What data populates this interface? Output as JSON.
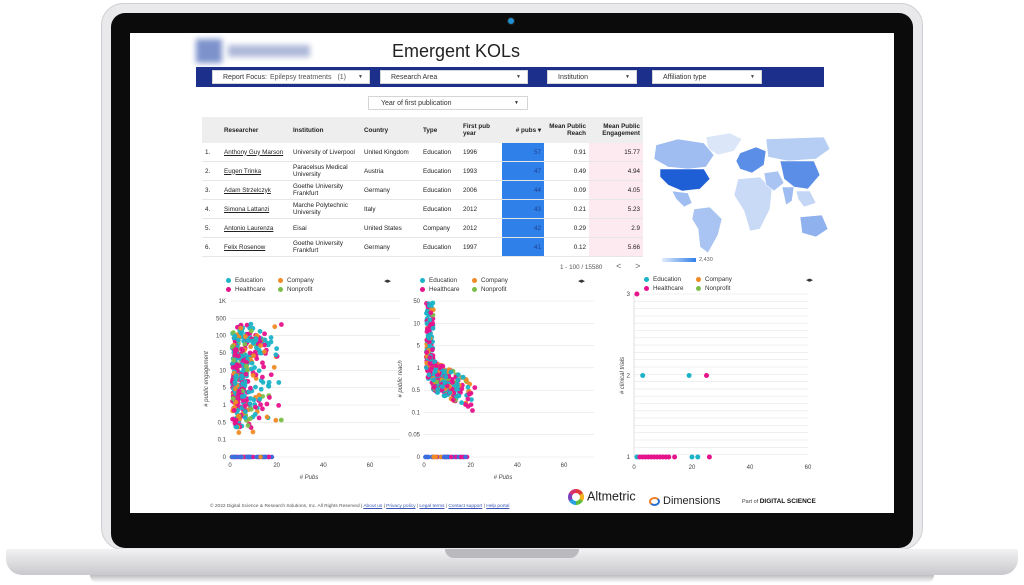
{
  "page": {
    "title": "Emergent KOLs"
  },
  "filters": {
    "report_focus_label": "Report Focus:",
    "report_focus_value": "Epilepsy treatments",
    "report_focus_count": "(1)",
    "research_area": "Research Area",
    "institution": "Institution",
    "affiliation_type": "Affiliation type",
    "year_first_publication": "Year of first publication"
  },
  "table": {
    "headers": [
      "",
      "Researcher",
      "Institution",
      "Country",
      "Type",
      "First pub year",
      "# pubs",
      "Mean Public Reach",
      "Mean Public Engagement"
    ],
    "sort_indicator": "▾",
    "rows": [
      {
        "rank": "1.",
        "researcher": "Anthony Guy Marson",
        "institution": "University of Liverpool",
        "country": "United Kingdom",
        "type": "Education",
        "first_pub_year": "1996",
        "pubs": "57",
        "reach": "0.91",
        "engagement": "15.77"
      },
      {
        "rank": "2.",
        "researcher": "Eugen Trinka",
        "institution": "Paracelsus Medical University",
        "country": "Austria",
        "type": "Education",
        "first_pub_year": "1993",
        "pubs": "47",
        "reach": "0.49",
        "engagement": "4.94"
      },
      {
        "rank": "3.",
        "researcher": "Adam Strzelczyk",
        "institution": "Goethe University Frankfurt",
        "country": "Germany",
        "type": "Education",
        "first_pub_year": "2006",
        "pubs": "44",
        "reach": "0.09",
        "engagement": "4.05"
      },
      {
        "rank": "4.",
        "researcher": "Simona Lattanzi",
        "institution": "Marche Polytechnic University",
        "country": "Italy",
        "type": "Education",
        "first_pub_year": "2012",
        "pubs": "43",
        "reach": "0.21",
        "engagement": "5.23"
      },
      {
        "rank": "5.",
        "researcher": "Antonio Laurenza",
        "institution": "Eisai",
        "country": "United States",
        "type": "Company",
        "first_pub_year": "2012",
        "pubs": "42",
        "reach": "0.29",
        "engagement": "2.9"
      },
      {
        "rank": "6.",
        "researcher": "Felix Rosenow",
        "institution": "Goethe University Frankfurt",
        "country": "Germany",
        "type": "Education",
        "first_pub_year": "1997",
        "pubs": "41",
        "reach": "0.12",
        "engagement": "5.66"
      }
    ],
    "pager": "1 - 100 / 15580",
    "prev": "<",
    "next": ">"
  },
  "map": {
    "legend_max": "2,430"
  },
  "legend": {
    "education": "Education",
    "company": "Company",
    "healthcare": "Healthcare",
    "nonprofit": "Nonprofit",
    "nav": "◂▸"
  },
  "colors": {
    "education": "#1bb3c8",
    "company": "#f08a24",
    "healthcare": "#e6138c",
    "nonprofit": "#7bbf4a",
    "filter_bar": "#1c2f8a",
    "pubs_bar": "#2f80e8",
    "engagement_bg": "#fde9f0",
    "bottom_marker": "#3b6fe0"
  },
  "chart_data": [
    {
      "type": "scatter",
      "xlabel": "# Pubs",
      "ylabel": "# public engagement",
      "x_ticks": [
        "0",
        "20",
        "40",
        "60"
      ],
      "y_ticks": [
        "0",
        "0.1",
        "0.5",
        "1",
        "5",
        "10",
        "50",
        "100",
        "500",
        "1K"
      ],
      "xlim": [
        0,
        60
      ],
      "y_scale": "log",
      "legend": "top-left"
    },
    {
      "type": "scatter",
      "xlabel": "# Pubs",
      "ylabel": "# public reach",
      "x_ticks": [
        "0",
        "20",
        "40",
        "60"
      ],
      "y_ticks": [
        "0",
        "0.05",
        "0.1",
        "0.5",
        "1",
        "5",
        "10",
        "50"
      ],
      "xlim": [
        0,
        60
      ],
      "y_scale": "log",
      "legend": "top-left"
    },
    {
      "type": "scatter",
      "xlabel": "",
      "ylabel": "# clinical trials",
      "x_ticks": [
        "0",
        "20",
        "40",
        "60"
      ],
      "y_ticks": [
        "1",
        "2",
        "3"
      ],
      "xlim": [
        0,
        60
      ],
      "ylim": [
        1,
        3
      ],
      "legend": "top-left",
      "points": [
        {
          "x": 1,
          "y": 3,
          "cat": "healthcare"
        },
        {
          "x": 3,
          "y": 2,
          "cat": "education"
        },
        {
          "x": 19,
          "y": 2,
          "cat": "education"
        },
        {
          "x": 25,
          "y": 2,
          "cat": "healthcare"
        },
        {
          "x": 1,
          "y": 1,
          "cat": "education"
        },
        {
          "x": 2,
          "y": 1,
          "cat": "healthcare"
        },
        {
          "x": 3,
          "y": 1,
          "cat": "healthcare"
        },
        {
          "x": 4,
          "y": 1,
          "cat": "healthcare"
        },
        {
          "x": 5,
          "y": 1,
          "cat": "healthcare"
        },
        {
          "x": 6,
          "y": 1,
          "cat": "healthcare"
        },
        {
          "x": 7,
          "y": 1,
          "cat": "healthcare"
        },
        {
          "x": 8,
          "y": 1,
          "cat": "healthcare"
        },
        {
          "x": 9,
          "y": 1,
          "cat": "healthcare"
        },
        {
          "x": 10,
          "y": 1,
          "cat": "healthcare"
        },
        {
          "x": 11,
          "y": 1,
          "cat": "healthcare"
        },
        {
          "x": 12,
          "y": 1,
          "cat": "healthcare"
        },
        {
          "x": 14,
          "y": 1,
          "cat": "healthcare"
        },
        {
          "x": 20,
          "y": 1,
          "cat": "education"
        },
        {
          "x": 22,
          "y": 1,
          "cat": "education"
        },
        {
          "x": 26,
          "y": 1,
          "cat": "healthcare"
        }
      ]
    }
  ],
  "footer": {
    "copyright": "© 2022 Digital Science & Research Solutions, Inc. All Rights Reserved |",
    "links": [
      "About us",
      "Privacy policy",
      "Legal terms",
      "Contact support",
      "Help portal"
    ],
    "altmetric": "Altmetric",
    "dimensions": "Dimensions",
    "ds_part_of": "Part of",
    "ds_brand": "DIGITAL SCIENCE"
  }
}
